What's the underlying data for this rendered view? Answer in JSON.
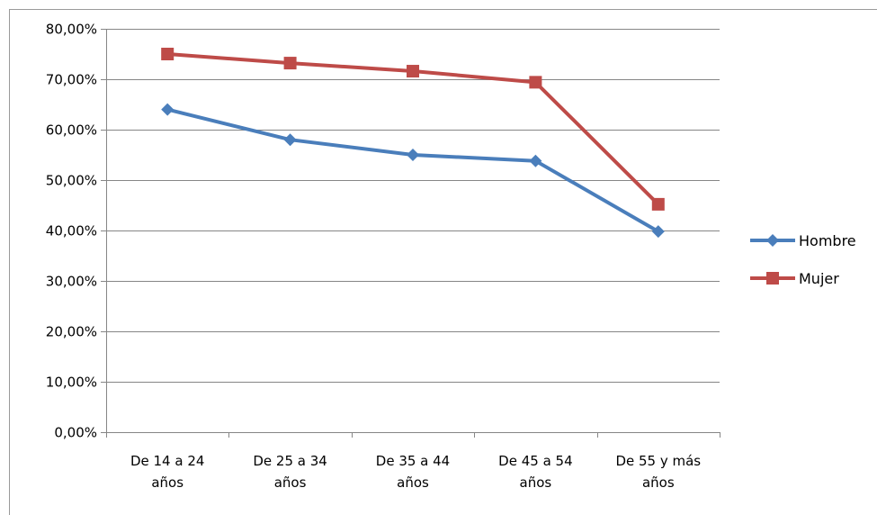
{
  "chart_data": {
    "type": "line",
    "title": "",
    "xlabel": "",
    "ylabel": "",
    "categories": [
      [
        "De 14 a 24",
        "años"
      ],
      [
        "De 25 a 34",
        "años"
      ],
      [
        "De 35 a 44",
        "años"
      ],
      [
        "De 45 a 54",
        "años"
      ],
      [
        "De 55 y más",
        "años"
      ]
    ],
    "series": [
      {
        "name": "Hombre",
        "color": "#4a7ebb",
        "marker": "diamond",
        "values": [
          64.0,
          58.0,
          55.0,
          53.8,
          39.8
        ]
      },
      {
        "name": "Mujer",
        "color": "#be4b48",
        "marker": "square",
        "values": [
          75.0,
          73.2,
          71.6,
          69.4,
          45.2
        ]
      }
    ],
    "ylim": [
      0,
      80
    ],
    "ytick_step": 10,
    "ytick_labels": [
      "0,00%",
      "10,00%",
      "20,00%",
      "30,00%",
      "40,00%",
      "50,00%",
      "60,00%",
      "70,00%",
      "80,00%"
    ],
    "grid": true,
    "gridline_color": "#868686",
    "legend_position": "right"
  }
}
